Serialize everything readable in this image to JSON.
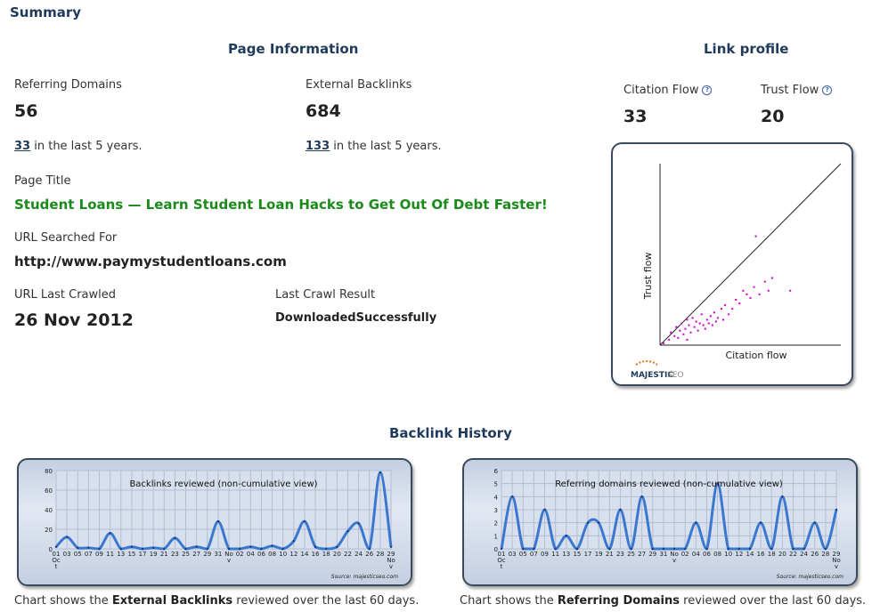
{
  "summary": {
    "title": "Summary"
  },
  "page_info": {
    "title": "Page Information",
    "referring_domains": {
      "label": "Referring Domains",
      "value": "56",
      "sub_num": "33",
      "sub_text": "in the last 5 years."
    },
    "external_backlinks": {
      "label": "External Backlinks",
      "value": "684",
      "sub_num": "133",
      "sub_text": "in the last 5 years."
    },
    "page_title_label": "Page Title",
    "page_title": "Student Loans — Learn Student Loan Hacks to Get Out Of Debt Faster!",
    "url_label": "URL Searched For",
    "url": "http://www.paymystudentloans.com",
    "crawled_label": "URL Last Crawled",
    "crawled": "26 Nov 2012",
    "result_label": "Last Crawl Result",
    "result": "DownloadedSuccessfully"
  },
  "link_profile": {
    "title": "Link profile",
    "citation_label": "Citation Flow",
    "citation_value": "33",
    "trust_label": "Trust Flow",
    "trust_value": "20",
    "help_glyph": "?",
    "chart_y_label": "Trust flow",
    "chart_x_label": "Citation flow",
    "logo_text": "MAJESTIC",
    "logo_text2": "SEO"
  },
  "history": {
    "title": "Backlink History",
    "caption1_pre": "Chart shows the",
    "caption1_bold": "External Backlinks",
    "caption1_post": "reviewed over the last 60 days.",
    "caption2_pre": "Chart shows the",
    "caption2_bold": "Referring Domains",
    "caption2_post": "reviewed over the last 60 days.",
    "source": "Source: majesticseo.com"
  },
  "chart_data": [
    {
      "type": "scatter",
      "title": "",
      "xlabel": "Citation flow",
      "ylabel": "Trust flow",
      "xlim": [
        0,
        100
      ],
      "ylim": [
        0,
        100
      ],
      "diagonal": true,
      "color": "#cc00cc",
      "points": [
        [
          2,
          1
        ],
        [
          5,
          3
        ],
        [
          6,
          7
        ],
        [
          8,
          5
        ],
        [
          9,
          10
        ],
        [
          10,
          4
        ],
        [
          11,
          8
        ],
        [
          12,
          12
        ],
        [
          13,
          6
        ],
        [
          14,
          9
        ],
        [
          15,
          14
        ],
        [
          15,
          3
        ],
        [
          16,
          11
        ],
        [
          17,
          7
        ],
        [
          18,
          15
        ],
        [
          19,
          10
        ],
        [
          20,
          13
        ],
        [
          21,
          8
        ],
        [
          22,
          12
        ],
        [
          23,
          17
        ],
        [
          24,
          11
        ],
        [
          25,
          9
        ],
        [
          26,
          14
        ],
        [
          27,
          12
        ],
        [
          28,
          16
        ],
        [
          29,
          11
        ],
        [
          30,
          18
        ],
        [
          31,
          13
        ],
        [
          32,
          15
        ],
        [
          34,
          20
        ],
        [
          35,
          14
        ],
        [
          36,
          22
        ],
        [
          38,
          17
        ],
        [
          40,
          20
        ],
        [
          42,
          25
        ],
        [
          44,
          23
        ],
        [
          46,
          30
        ],
        [
          48,
          28
        ],
        [
          50,
          26
        ],
        [
          52,
          32
        ],
        [
          55,
          28
        ],
        [
          58,
          35
        ],
        [
          60,
          30
        ],
        [
          62,
          37
        ],
        [
          72,
          30
        ],
        [
          53,
          60
        ]
      ]
    },
    {
      "type": "line",
      "title": "Backlinks reviewed (non-cumulative view)",
      "ylim": [
        0,
        80
      ],
      "yticks": [
        0,
        20,
        40,
        60,
        80
      ],
      "x": [
        "01 Oct",
        "03",
        "05",
        "07",
        "09",
        "11",
        "13",
        "15",
        "17",
        "19",
        "21",
        "23",
        "25",
        "27",
        "29",
        "31",
        "No v",
        "02",
        "04",
        "06",
        "08",
        "10",
        "12",
        "14",
        "16",
        "18",
        "20",
        "22",
        "24",
        "26",
        "28",
        "29 Nov"
      ],
      "xticks": [
        "01\nOc\nt",
        "03",
        "05",
        "07",
        "09",
        "11",
        "13",
        "15",
        "17",
        "19",
        "21",
        "23",
        "25",
        "27",
        "29",
        "31",
        "No\nv",
        "02",
        "04",
        "06",
        "08",
        "10",
        "12",
        "14",
        "16",
        "18",
        "20",
        "22",
        "24",
        "26",
        "28",
        "29\nNo\nv"
      ],
      "values": [
        2,
        12,
        1,
        1,
        0,
        16,
        0,
        2,
        0,
        1,
        0,
        11,
        0,
        2,
        0,
        28,
        0,
        0,
        2,
        0,
        3,
        0,
        8,
        28,
        2,
        0,
        2,
        18,
        26,
        0,
        78,
        2
      ]
    },
    {
      "type": "line",
      "title": "Referring domains reviewed (non-cumulative view)",
      "ylim": [
        0,
        6
      ],
      "yticks": [
        0,
        1,
        2,
        3,
        4,
        5,
        6
      ],
      "x": [
        "01 Oct",
        "03",
        "05",
        "07",
        "09",
        "11",
        "13",
        "15",
        "17",
        "19",
        "21",
        "23",
        "25",
        "27",
        "29",
        "31",
        "No v",
        "02",
        "04",
        "06",
        "08",
        "10",
        "12",
        "14",
        "16",
        "18",
        "20",
        "22",
        "24",
        "26",
        "28",
        "29 Nov"
      ],
      "xticks": [
        "01\nOc\nt",
        "03",
        "05",
        "07",
        "09",
        "11",
        "13",
        "15",
        "17",
        "19",
        "21",
        "23",
        "25",
        "27",
        "29",
        "31",
        "No\nv",
        "02",
        "04",
        "06",
        "08",
        "10",
        "12",
        "14",
        "16",
        "18",
        "20",
        "22",
        "24",
        "26",
        "28",
        "29\nNo\nv"
      ],
      "values": [
        0,
        4,
        0,
        0,
        3,
        0,
        1,
        0,
        2,
        2,
        0,
        3,
        0,
        4,
        0,
        0,
        0,
        0,
        2,
        0,
        5,
        0,
        0,
        0,
        2,
        0,
        4,
        0,
        0,
        2,
        0,
        3
      ]
    }
  ]
}
